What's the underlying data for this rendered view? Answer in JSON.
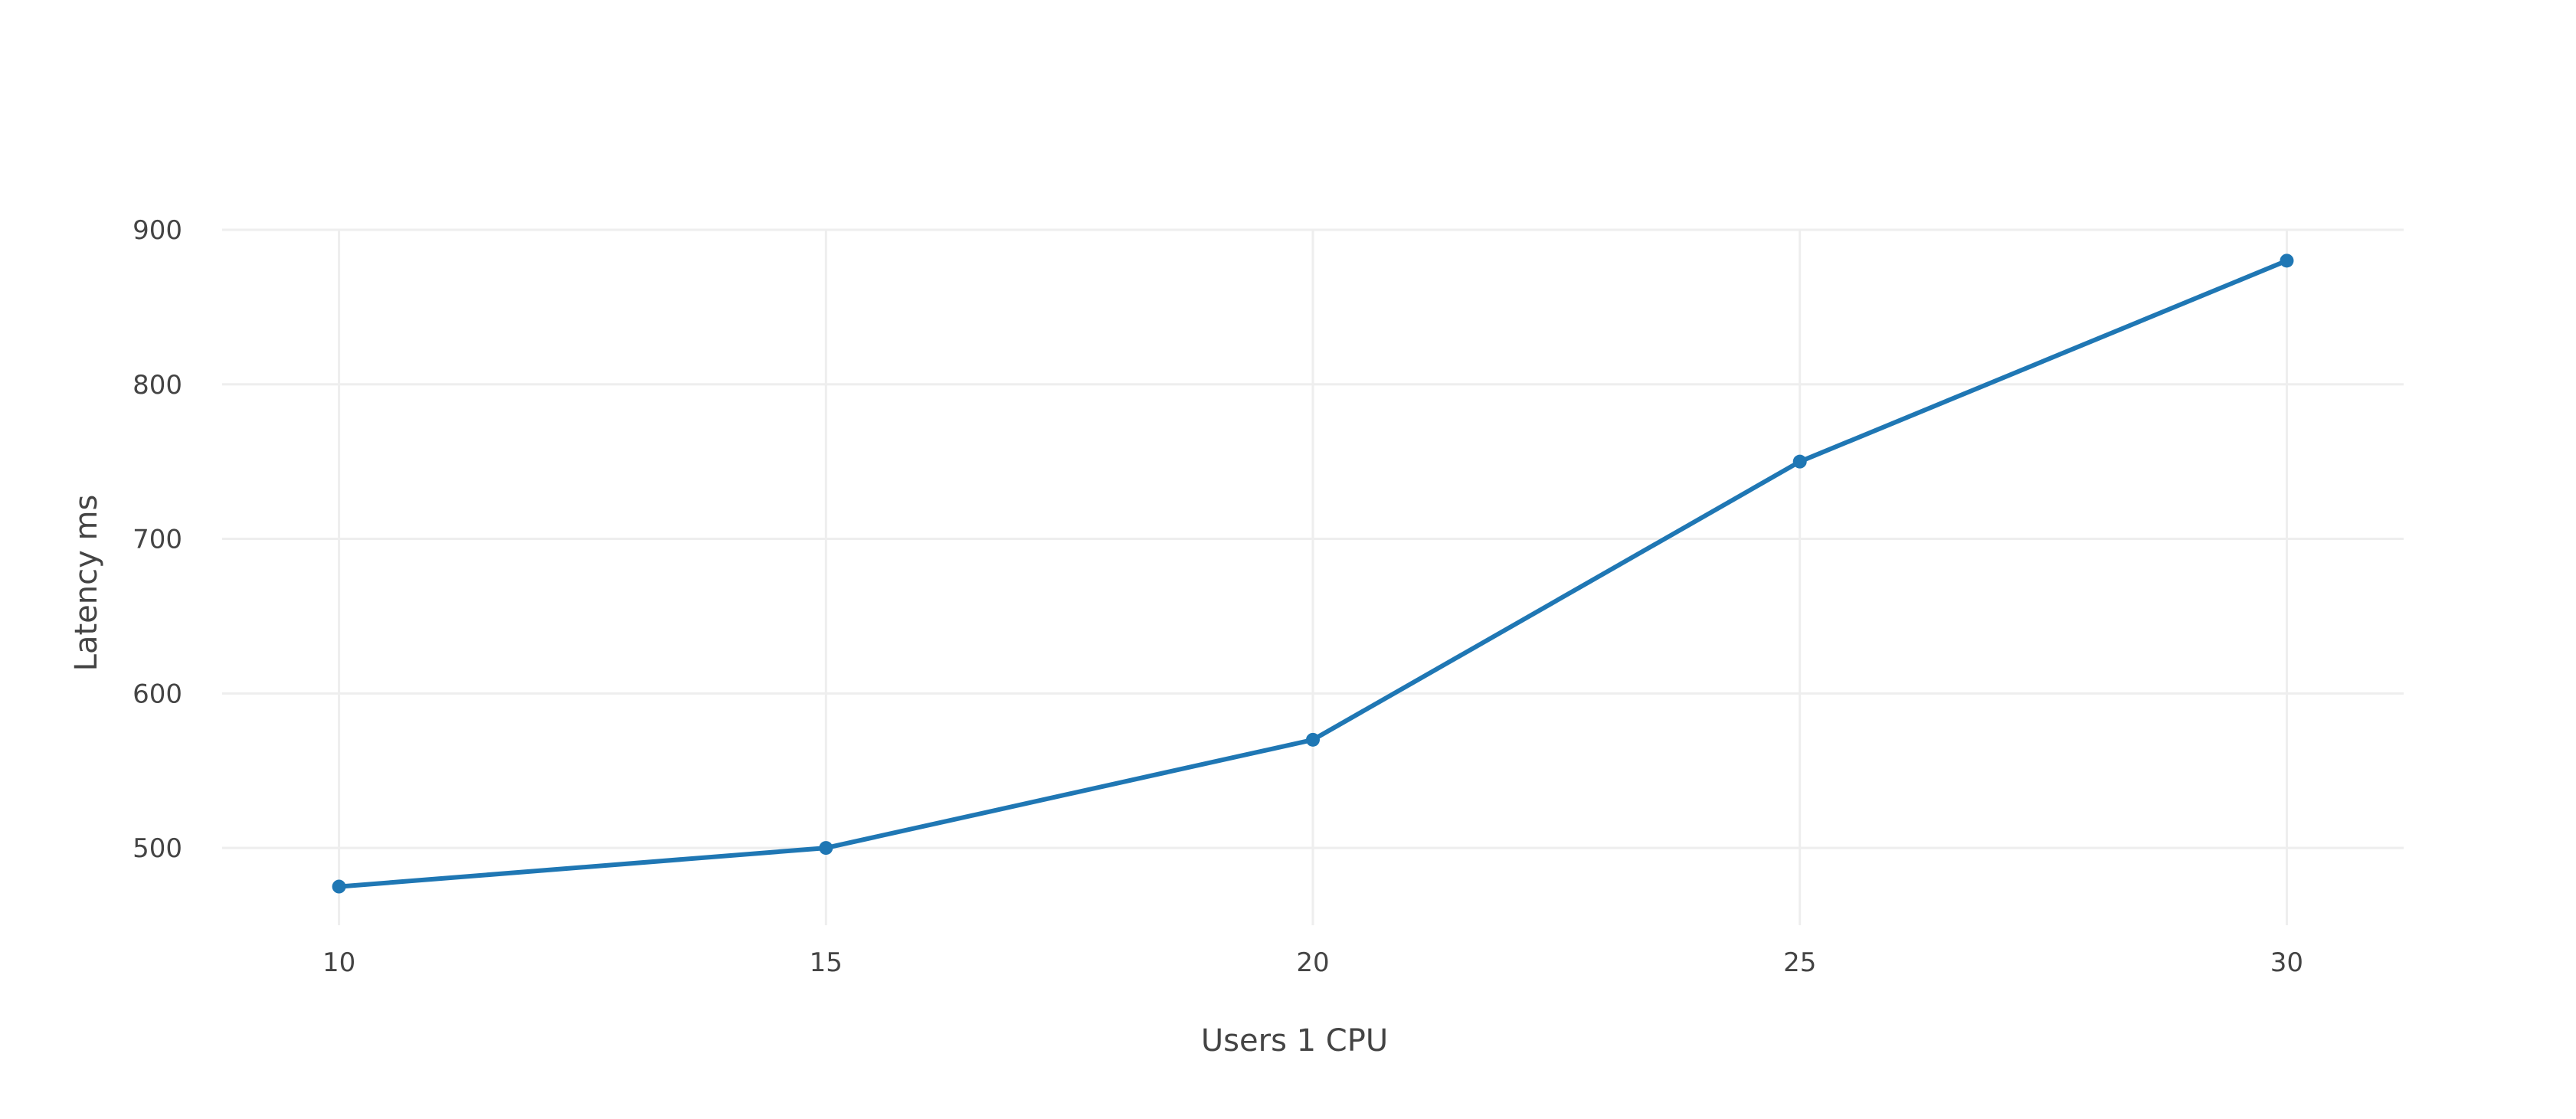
{
  "chart_data": {
    "type": "line",
    "title": "",
    "xlabel": "Users 1 CPU",
    "ylabel": "Latency ms",
    "x": [
      10,
      15,
      20,
      25,
      30
    ],
    "series": [
      {
        "values": [
          475,
          500,
          570,
          750,
          880
        ],
        "color": "#1f77b4"
      }
    ],
    "xticks": [
      10,
      15,
      20,
      25,
      30
    ],
    "yticks": [
      500,
      600,
      700,
      800,
      900
    ],
    "xlim": [
      8.8,
      31.2
    ],
    "ylim": [
      450,
      900
    ],
    "grid": true,
    "legend": "none",
    "markers": true
  }
}
